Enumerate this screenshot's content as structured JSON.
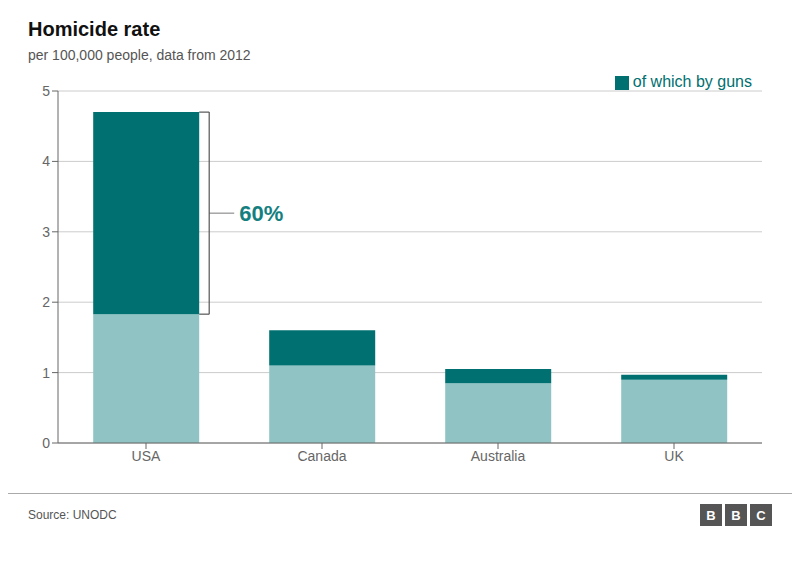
{
  "chart_data": {
    "type": "bar",
    "title": "Homicide rate",
    "subtitle": "per 100,000 people, data from 2012",
    "categories": [
      "USA",
      "Canada",
      "Australia",
      "UK"
    ],
    "series": [
      {
        "color": "#90c4c4",
        "values": [
          1.83,
          1.1,
          0.85,
          0.9
        ]
      },
      {
        "name": "of which by guns",
        "color": "#007070",
        "values": [
          2.87,
          0.5,
          0.2,
          0.07
        ]
      }
    ],
    "stacked": true,
    "ylim": [
      0,
      5
    ],
    "yticks": [
      0,
      1,
      2,
      3,
      4,
      5
    ],
    "grid": true,
    "legend": "upper right",
    "annotations": [
      {
        "text": "60%",
        "category": "USA",
        "series": "of which by guns",
        "color": "#157f7f"
      }
    ],
    "source": "Source: UNODC",
    "logo": "BBC"
  }
}
